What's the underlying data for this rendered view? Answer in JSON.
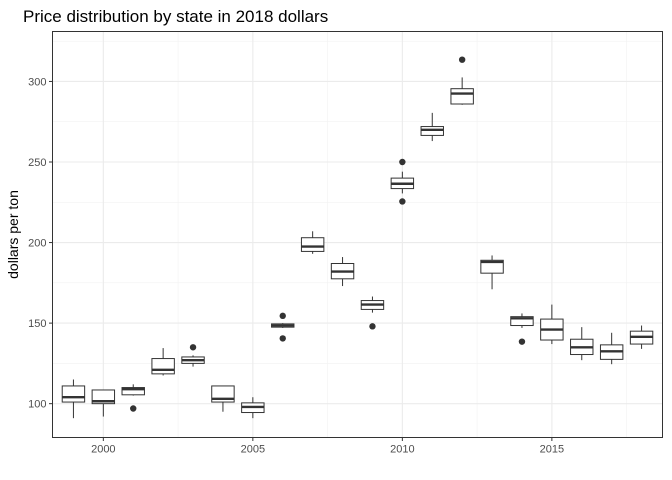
{
  "chart_data": {
    "type": "boxplot",
    "title": "Price distribution by state in 2018 dollars",
    "xlabel": "",
    "ylabel": "dollars per ton",
    "xlim": [
      1998.3,
      2018.7
    ],
    "ylim": [
      79,
      331
    ],
    "x_ticks": [
      2000,
      2005,
      2010,
      2015
    ],
    "y_ticks": [
      100,
      150,
      200,
      250,
      300
    ],
    "grid": true,
    "legend": "none",
    "boxes": [
      {
        "x": 1999,
        "min": 91,
        "q1": 101,
        "median": 104,
        "q3": 111,
        "max": 115,
        "outliers": []
      },
      {
        "x": 2000,
        "min": 92,
        "q1": 100,
        "median": 101.5,
        "q3": 108.5,
        "max": 108.5,
        "outliers": []
      },
      {
        "x": 2001,
        "min": 105,
        "q1": 105.5,
        "median": 109,
        "q3": 110,
        "max": 112,
        "outliers": [
          97
        ]
      },
      {
        "x": 2002,
        "min": 117.5,
        "q1": 118.5,
        "median": 121,
        "q3": 128,
        "max": 134.5,
        "outliers": []
      },
      {
        "x": 2003,
        "min": 123,
        "q1": 125,
        "median": 127,
        "q3": 129,
        "max": 130,
        "outliers": [
          135
        ]
      },
      {
        "x": 2004,
        "min": 95,
        "q1": 101,
        "median": 103,
        "q3": 111,
        "max": 111,
        "outliers": []
      },
      {
        "x": 2005,
        "min": 91,
        "q1": 94.5,
        "median": 98,
        "q3": 100.5,
        "max": 104,
        "outliers": []
      },
      {
        "x": 2006,
        "min": 147,
        "q1": 147.5,
        "median": 148.5,
        "q3": 149.5,
        "max": 150,
        "outliers": [
          140.5,
          154.5
        ]
      },
      {
        "x": 2007,
        "min": 193,
        "q1": 194.5,
        "median": 197.5,
        "q3": 203,
        "max": 207,
        "outliers": []
      },
      {
        "x": 2008,
        "min": 173,
        "q1": 177.5,
        "median": 182,
        "q3": 187,
        "max": 191,
        "outliers": []
      },
      {
        "x": 2009,
        "min": 156.5,
        "q1": 158.5,
        "median": 161.5,
        "q3": 164,
        "max": 166.5,
        "outliers": [
          148
        ]
      },
      {
        "x": 2010,
        "min": 230.5,
        "q1": 233.5,
        "median": 236.5,
        "q3": 240,
        "max": 244,
        "outliers": [
          225.5,
          250
        ]
      },
      {
        "x": 2011,
        "min": 263,
        "q1": 266.5,
        "median": 270,
        "q3": 272,
        "max": 280.5,
        "outliers": []
      },
      {
        "x": 2012,
        "min": 285.5,
        "q1": 286,
        "median": 292.5,
        "q3": 295.5,
        "max": 302.5,
        "outliers": [
          313.5
        ]
      },
      {
        "x": 2013,
        "min": 171,
        "q1": 181,
        "median": 188,
        "q3": 189,
        "max": 192,
        "outliers": []
      },
      {
        "x": 2014,
        "min": 147,
        "q1": 148.5,
        "median": 153,
        "q3": 154,
        "max": 156,
        "outliers": [
          138.5
        ]
      },
      {
        "x": 2015,
        "min": 137,
        "q1": 139.5,
        "median": 146,
        "q3": 152.5,
        "max": 161.5,
        "outliers": []
      },
      {
        "x": 2016,
        "min": 127,
        "q1": 130.5,
        "median": 135,
        "q3": 140,
        "max": 147.5,
        "outliers": []
      },
      {
        "x": 2017,
        "min": 124.5,
        "q1": 127.5,
        "median": 132.5,
        "q3": 136.5,
        "max": 144,
        "outliers": []
      },
      {
        "x": 2018,
        "min": 134,
        "q1": 137,
        "median": 141.5,
        "q3": 145,
        "max": 148.5,
        "outliers": []
      }
    ]
  }
}
